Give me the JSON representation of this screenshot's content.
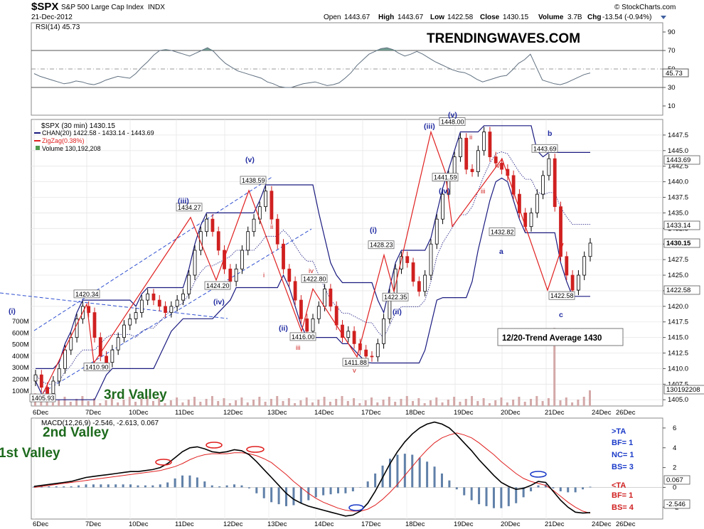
{
  "header": {
    "symbol": "$SPX",
    "name": "S&P 500 Large Cap Index",
    "exchange": "INDX",
    "date": "21-Dec-2012",
    "open_label": "Open",
    "open": "1443.67",
    "high_label": "High",
    "high": "1443.67",
    "low_label": "Low",
    "low": "1422.58",
    "close_label": "Close",
    "close": "1430.15",
    "volume_label": "Volume",
    "volume": "3.7B",
    "chg_label": "Chg",
    "chg": "-13.54 (-0.94%)",
    "copyright": "© StockCharts.com"
  },
  "watermark": "TRENDINGWAVES.COM",
  "colors": {
    "price_up": "#000000",
    "price_down": "#d02020",
    "channel": "#1a1a80",
    "zigzag": "#e02020",
    "trendline": "#3050d0",
    "rsi": "#607080",
    "rsi_fill": "#5d8f80",
    "volume": "#d4a8a8",
    "macd": "#000000",
    "signal": "#e02020",
    "hist": "#6080a8",
    "wave_blue": "#1f2aa0",
    "valley_green": "#1d6a1d"
  },
  "rsi": {
    "label": "RSI(14) 45.73",
    "current": "45.73",
    "ticks": [
      "90",
      "70",
      "50",
      "30",
      "10"
    ],
    "levels": [
      90,
      70,
      50,
      30,
      10
    ],
    "series": [
      45,
      42,
      40,
      38,
      36,
      34,
      35,
      37,
      36,
      34,
      33,
      35,
      38,
      40,
      42,
      41,
      40,
      45,
      52,
      58,
      65,
      70,
      71,
      70,
      68,
      66,
      64,
      67,
      70,
      73,
      69,
      62,
      56,
      52,
      48,
      46,
      44,
      42,
      40,
      36,
      34,
      31,
      30,
      30,
      32,
      34,
      35,
      36,
      34,
      32,
      33,
      35,
      40,
      46,
      54,
      60,
      66,
      69,
      72,
      73,
      71,
      67,
      64,
      66,
      69,
      66,
      62,
      58,
      55,
      52,
      49,
      47,
      46,
      43,
      39,
      36,
      38,
      40,
      42,
      43,
      49,
      56,
      60,
      66,
      52,
      38,
      36,
      34,
      33,
      35,
      38,
      41,
      44,
      45.73
    ]
  },
  "price": {
    "legend": [
      {
        "key": "title",
        "text": "$SPX (30 min) 1430.15"
      },
      {
        "key": "chan",
        "text": "CHAN(20) 1422.58 - 1433.14 - 1443.69"
      },
      {
        "key": "zz",
        "text": "ZigZag(0.38%)"
      },
      {
        "key": "vol",
        "text": "Volume 130,192,208"
      }
    ],
    "ticks": [
      "1447.5",
      "1445.0",
      "1442.5",
      "1440.0",
      "1437.5",
      "1435.0",
      "1432.5",
      "1430.0",
      "1427.5",
      "1425.0",
      "1422.5",
      "1420.0",
      "1417.5",
      "1415.0",
      "1412.5",
      "1410.0",
      "1407.5",
      "1405.0"
    ],
    "tick_values": [
      1447.5,
      1445.0,
      1442.5,
      1440.0,
      1437.5,
      1435.0,
      1432.5,
      1430.0,
      1427.5,
      1425.0,
      1422.5,
      1420.0,
      1417.5,
      1415.0,
      1412.5,
      1410.0,
      1407.5,
      1405.0
    ],
    "ylim": [
      1404,
      1450
    ],
    "value_tags": [
      "1443.69",
      "1433.14",
      "1430.15",
      "1422.58",
      "130192208"
    ],
    "volume_ticks": [
      "700M",
      "600M",
      "500M",
      "400M",
      "300M",
      "200M",
      "100M"
    ],
    "close_series": [
      1409,
      1407,
      1406,
      1408,
      1410,
      1413,
      1415,
      1418,
      1420,
      1419,
      1415,
      1412,
      1411,
      1413,
      1415,
      1417,
      1418,
      1419,
      1421,
      1422,
      1421,
      1420,
      1419,
      1420,
      1421,
      1422,
      1425,
      1429,
      1432,
      1434,
      1432,
      1429,
      1426,
      1424,
      1426,
      1429,
      1432,
      1434,
      1436,
      1438.5,
      1434,
      1430,
      1426,
      1424,
      1421,
      1418,
      1416,
      1418,
      1420,
      1422.8,
      1420,
      1417,
      1415,
      1416,
      1414,
      1413,
      1412,
      1411.9,
      1414,
      1418,
      1422,
      1426,
      1428,
      1427,
      1424,
      1422.4,
      1425,
      1430,
      1434,
      1438,
      1441,
      1444,
      1447,
      1442,
      1441.6,
      1445,
      1448,
      1444,
      1443,
      1442,
      1441,
      1438,
      1435,
      1432.8,
      1435,
      1438,
      1441,
      1443.7,
      1436,
      1428,
      1425,
      1422.6,
      1425,
      1428,
      1430.15
    ],
    "zigzag_points": [
      [
        1405.93
      ],
      [
        1420.34
      ],
      [
        1410.9
      ],
      [
        1434.27
      ],
      [
        1424.2
      ],
      [
        1438.59
      ],
      [
        1416.0
      ],
      [
        1422.8
      ],
      [
        1411.88
      ],
      [
        1428.23
      ],
      [
        1422.35
      ],
      [
        1448.0
      ],
      [
        1441.59
      ],
      [
        1432.82
      ],
      [
        1443.69
      ],
      [
        1422.58
      ],
      [
        1430.15
      ]
    ],
    "price_labels": [
      "1405.93",
      "1420.34",
      "1410.90",
      "1434.27",
      "1424.20",
      "1438.59",
      "1416.00",
      "1422.80",
      "1411.88",
      "1428.23",
      "1422.35",
      "1448.00",
      "1441.59",
      "1432.82",
      "1443.69",
      "1422.58"
    ],
    "wave_labels": [
      "(i)",
      "(iii)",
      "(iv)",
      "(v)",
      "(ii)",
      "(i)",
      "(ii)",
      "(iii)",
      "(iv)",
      "(v)",
      "a",
      "b",
      "c"
    ],
    "red_wave_labels": [
      "i",
      "ii",
      "iii",
      "iv",
      "v",
      "i",
      "ii",
      "iii",
      "iv"
    ],
    "trend_box": "12/20-Trend Average 1430"
  },
  "valleys": [
    "3rd Valley",
    "2nd Valley",
    "1st Valley"
  ],
  "x_ticks": [
    "6Dec",
    "7Dec",
    "10Dec",
    "11Dec",
    "12Dec",
    "13Dec",
    "14Dec",
    "17Dec",
    "18Dec",
    "19Dec",
    "20Dec",
    "21Dec",
    "24Dec",
    "26Dec"
  ],
  "macd": {
    "label": "MACD(12,26,9) -2.546, -2.613, 0.067",
    "ticks": [
      "6",
      "4",
      "2",
      "0",
      "-2"
    ],
    "tick_values": [
      6,
      4,
      2,
      0,
      -2
    ],
    "ylim": [
      -3.2,
      7.0
    ],
    "value_tags": [
      "0.067",
      "-2.546"
    ],
    "macd_series": [
      0.1,
      0.2,
      0.3,
      0.4,
      0.5,
      0.6,
      0.8,
      1.0,
      1.1,
      1.2,
      1.3,
      1.4,
      1.5,
      1.6,
      1.6,
      1.7,
      1.8,
      2.0,
      2.4,
      3.0,
      3.6,
      4.0,
      4.1,
      3.9,
      3.6,
      3.5,
      3.6,
      3.8,
      3.7,
      3.3,
      2.6,
      1.8,
      1.0,
      0.2,
      -0.6,
      -1.2,
      -1.6,
      -1.9,
      -2.1,
      -2.3,
      -2.5,
      -2.7,
      -2.9,
      -2.8,
      -2.4,
      -1.6,
      -0.4,
      1.0,
      2.4,
      3.6,
      4.6,
      5.4,
      6.0,
      6.4,
      6.6,
      6.4,
      6.0,
      5.3,
      4.5,
      3.7,
      2.8,
      2.0,
      1.2,
      0.5,
      0.1,
      -0.2,
      -0.1,
      0.2,
      0.6,
      0.5,
      -0.4,
      -1.3,
      -2.0,
      -2.5,
      -2.6,
      -2.546
    ],
    "signal_series": [
      0.0,
      0.1,
      0.2,
      0.3,
      0.4,
      0.5,
      0.6,
      0.7,
      0.8,
      0.9,
      1.0,
      1.1,
      1.2,
      1.3,
      1.4,
      1.5,
      1.6,
      1.7,
      1.9,
      2.1,
      2.4,
      2.8,
      3.1,
      3.3,
      3.4,
      3.4,
      3.4,
      3.5,
      3.5,
      3.4,
      3.2,
      2.9,
      2.5,
      1.9,
      1.3,
      0.6,
      0.0,
      -0.6,
      -1.1,
      -1.5,
      -1.8,
      -2.1,
      -2.3,
      -2.4,
      -2.4,
      -2.2,
      -1.8,
      -1.2,
      -0.5,
      0.3,
      1.2,
      2.1,
      3.0,
      3.8,
      4.5,
      5.0,
      5.3,
      5.5,
      5.3,
      5.0,
      4.5,
      3.9,
      3.3,
      2.6,
      2.0,
      1.4,
      0.9,
      0.6,
      0.4,
      0.2,
      -0.3,
      -0.9,
      -1.5,
      -2.0,
      -2.4,
      -2.613
    ],
    "ta_lines": [
      {
        "text": ">TA",
        "tone": "blue"
      },
      {
        "text": "BF= 1",
        "tone": "blue"
      },
      {
        "text": "NC= 1",
        "tone": "blue"
      },
      {
        "text": "BS= 3",
        "tone": "blue"
      },
      {
        "text": "<TA",
        "tone": "red"
      },
      {
        "text": "BF= 1",
        "tone": "red"
      },
      {
        "text": "BS= 4",
        "tone": "red"
      }
    ]
  }
}
